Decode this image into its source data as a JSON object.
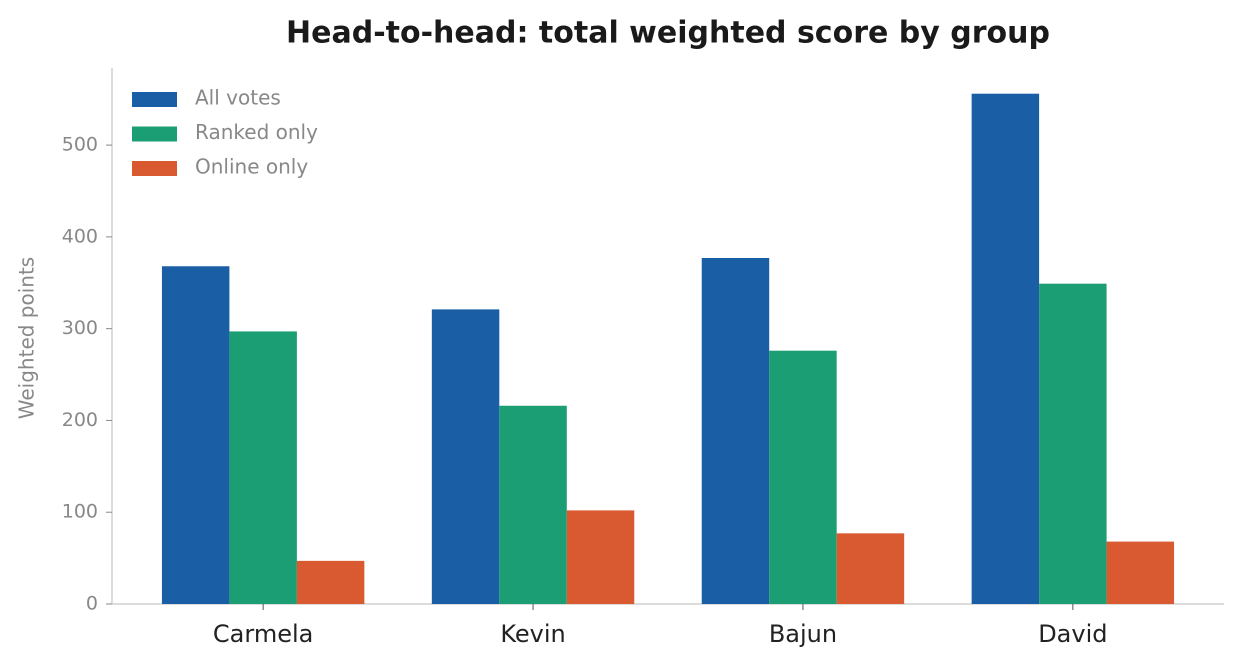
{
  "chart_data": {
    "type": "bar",
    "title": "Head-to-head: total weighted score by group",
    "y_label": "Weighted points",
    "categories": [
      "Carmela",
      "Kevin",
      "Bajun",
      "David"
    ],
    "series": [
      {
        "name": "All votes",
        "color": "#1a5ea6",
        "values": [
          368,
          321,
          377,
          556
        ]
      },
      {
        "name": "Ranked only",
        "color": "#1c9e74",
        "values": [
          297,
          216,
          276,
          349
        ]
      },
      {
        "name": "Online only",
        "color": "#d95a31",
        "values": [
          47,
          102,
          77,
          68
        ]
      }
    ],
    "ylim": [
      0,
      584
    ],
    "yticks": [
      0,
      100,
      200,
      300,
      400,
      500
    ],
    "grid": false,
    "legend": "upper left"
  }
}
